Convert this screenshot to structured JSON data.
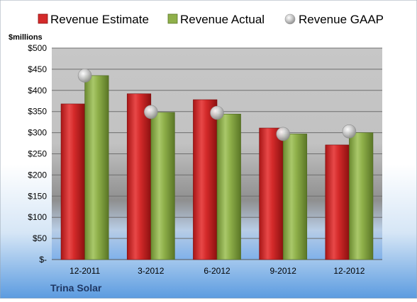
{
  "chart_data": {
    "type": "bar",
    "title": "",
    "company": "Trina Solar",
    "ylabel": "$millions",
    "xlabel": "",
    "categories": [
      "12-2011",
      "3-2012",
      "6-2012",
      "9-2012",
      "12-2012"
    ],
    "ylim": [
      0,
      500
    ],
    "yticks": [
      0,
      50,
      100,
      150,
      200,
      250,
      300,
      350,
      400,
      450,
      500
    ],
    "ytick_labels": [
      "$-",
      "$50",
      "$100",
      "$150",
      "$200",
      "$250",
      "$300",
      "$350",
      "$400",
      "$450",
      "$500"
    ],
    "grid": true,
    "legend_position": "top",
    "series": [
      {
        "name": "Revenue Estimate",
        "kind": "bar",
        "color": "#d42a2a",
        "values": [
          368,
          392,
          378,
          311,
          271
        ]
      },
      {
        "name": "Revenue Actual",
        "kind": "bar",
        "color": "#8fb04a",
        "values": [
          435,
          348,
          344,
          297,
          300
        ]
      },
      {
        "name": "Revenue GAAP",
        "kind": "marker",
        "color": "#b8b8b8",
        "values": [
          435,
          349,
          347,
          297,
          303
        ]
      }
    ]
  }
}
